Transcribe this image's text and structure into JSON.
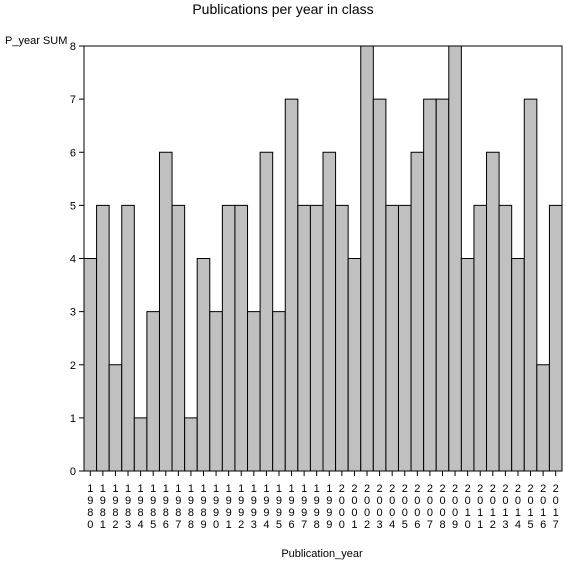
{
  "chart_data": {
    "type": "bar",
    "title": "Publications per year in class",
    "xlabel": "Publication_year",
    "ylabel": "P_year SUM",
    "ylim": [
      0,
      8
    ],
    "yticks": [
      0,
      1,
      2,
      3,
      4,
      5,
      6,
      7,
      8
    ],
    "grid": false,
    "bar_color": "#c0c0c0",
    "edge_color": "#000000",
    "categories": [
      "1980",
      "1981",
      "1982",
      "1983",
      "1984",
      "1985",
      "1986",
      "1987",
      "1988",
      "1989",
      "1990",
      "1991",
      "1992",
      "1993",
      "1994",
      "1995",
      "1996",
      "1997",
      "1998",
      "1999",
      "2000",
      "2001",
      "2002",
      "2003",
      "2004",
      "2005",
      "2006",
      "2007",
      "2008",
      "2009",
      "2010",
      "2011",
      "2012",
      "2013",
      "2014",
      "2015",
      "2016",
      "2017"
    ],
    "values": [
      4,
      5,
      2,
      5,
      1,
      3,
      6,
      5,
      1,
      4,
      3,
      5,
      5,
      3,
      6,
      3,
      7,
      5,
      5,
      6,
      5,
      4,
      8,
      7,
      5,
      5,
      6,
      7,
      7,
      8,
      4,
      5,
      6,
      5,
      4,
      7,
      2,
      5
    ]
  }
}
